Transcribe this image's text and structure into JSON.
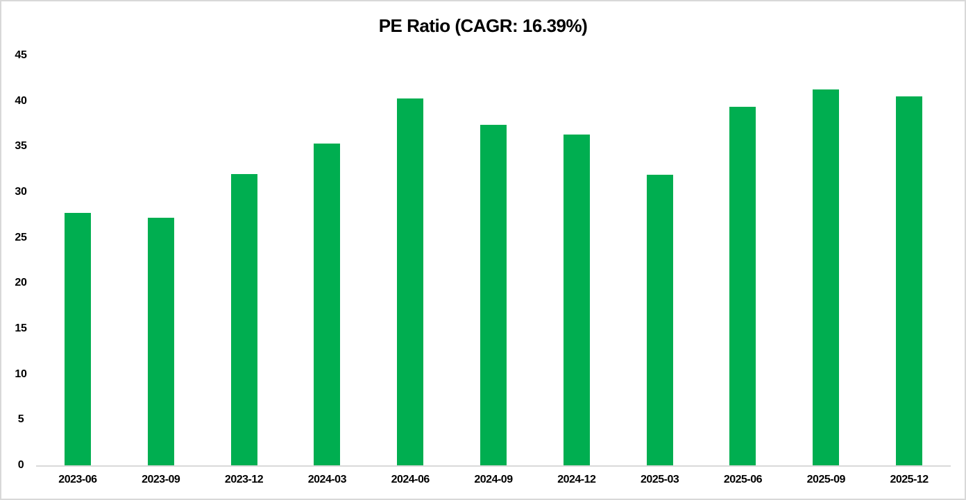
{
  "chart": {
    "title": "PE Ratio (CAGR: 16.39%)"
  },
  "chart_data": {
    "type": "bar",
    "title": "PE Ratio (CAGR: 16.39%)",
    "categories": [
      "2023-06",
      "2023-09",
      "2023-12",
      "2024-03",
      "2024-06",
      "2024-09",
      "2024-12",
      "2025-03",
      "2025-06",
      "2025-09",
      "2025-12"
    ],
    "values": [
      27.7,
      27.2,
      32.0,
      35.3,
      40.3,
      37.4,
      36.3,
      31.9,
      39.4,
      41.3,
      40.5
    ],
    "xlabel": "",
    "ylabel": "",
    "ylim": [
      0,
      45
    ],
    "yticks": [
      0,
      5,
      10,
      15,
      20,
      25,
      30,
      35,
      40,
      45
    ],
    "grid": false,
    "legend": "none",
    "colors": {
      "bar": "#00AE50",
      "axis_line": "#D9D9D9",
      "text": "#000000",
      "border": "#D8D8D8",
      "background": "#FFFFFF"
    }
  }
}
